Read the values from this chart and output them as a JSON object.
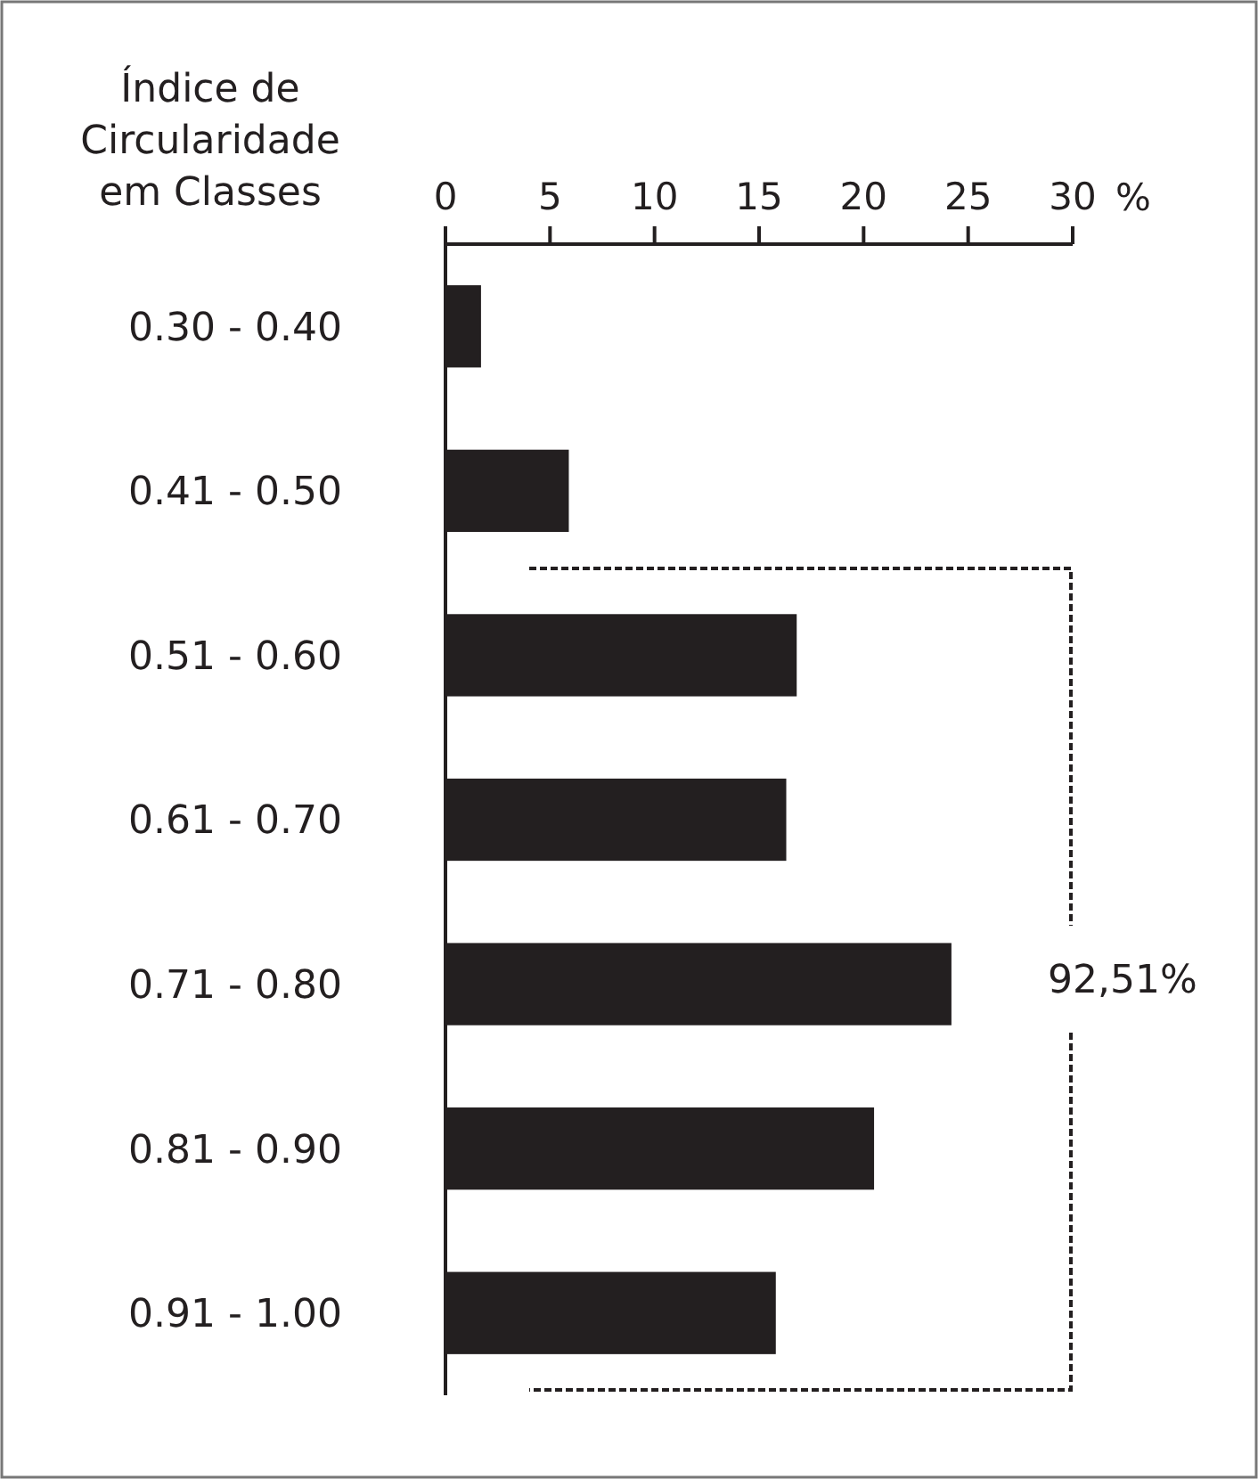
{
  "chart_data": {
    "type": "bar",
    "orientation": "horizontal",
    "ylabel": "Índice de Circularidade em Classes",
    "xlabel": "%",
    "categories": [
      "0.30 - 0.40",
      "0.41 - 0.50",
      "0.51 - 0.60",
      "0.61 - 0.70",
      "0.71 - 0.80",
      "0.81 - 0.90",
      "0.91 - 1.00"
    ],
    "values": [
      1.7,
      5.9,
      16.8,
      16.3,
      24.2,
      20.5,
      15.8
    ],
    "color": "#231f20",
    "xlim": [
      0,
      30
    ],
    "xticks": [
      0,
      5,
      10,
      15,
      20,
      25,
      30
    ],
    "annotations": [
      "92,51%"
    ],
    "grid": false
  }
}
